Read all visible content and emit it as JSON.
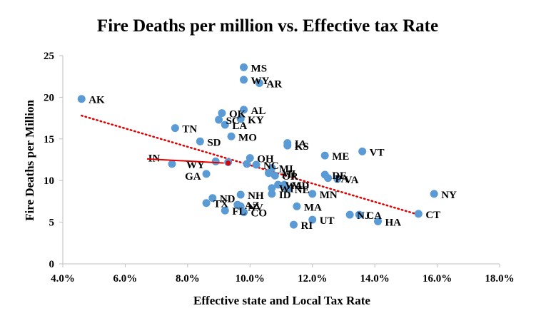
{
  "colors": {
    "point": "#5b9bd5",
    "trendline": "#e00000",
    "arrow": "#e00000",
    "axis": "#bfbfbf"
  },
  "chart_data": {
    "type": "scatter",
    "title": "Fire Deaths per million vs. Effective tax Rate",
    "xlabel": "Effective state and Local Tax Rate",
    "ylabel": "Fire Deaths per Million",
    "xlim": [
      0.04,
      0.18
    ],
    "ylim": [
      0,
      25
    ],
    "x_ticks": [
      0.04,
      0.06,
      0.08,
      0.1,
      0.12,
      0.14,
      0.16,
      0.18
    ],
    "x_tick_labels": [
      "4.0%",
      "6.0%",
      "8.0%",
      "10.0%",
      "12.0%",
      "14.0%",
      "16.0%",
      "18.0%"
    ],
    "y_ticks": [
      0,
      5,
      10,
      15,
      20,
      25
    ],
    "y_tick_labels": [
      "0",
      "5",
      "10",
      "15",
      "20",
      "25"
    ],
    "grid": false,
    "legend": "none",
    "trendline": {
      "type": "linear",
      "style": "dotted",
      "x": [
        0.046,
        0.154
      ],
      "y": [
        17.8,
        5.9
      ]
    },
    "annotation_arrow": {
      "from": [
        0.067,
        12.6
      ],
      "to": [
        0.093,
        12.1
      ]
    },
    "points": [
      {
        "x": 0.046,
        "y": 19.8,
        "label": "AK"
      },
      {
        "x": 0.098,
        "y": 23.6,
        "label": "MS"
      },
      {
        "x": 0.098,
        "y": 22.1,
        "label": "WY"
      },
      {
        "x": 0.103,
        "y": 21.7,
        "label": "AR"
      },
      {
        "x": 0.098,
        "y": 18.5,
        "label": "AL"
      },
      {
        "x": 0.091,
        "y": 18.1,
        "label": "OK"
      },
      {
        "x": 0.097,
        "y": 17.4,
        "label": "KY"
      },
      {
        "x": 0.09,
        "y": 17.3,
        "label": "SC"
      },
      {
        "x": 0.092,
        "y": 16.7,
        "label": "LA"
      },
      {
        "x": 0.076,
        "y": 16.3,
        "label": "TN"
      },
      {
        "x": 0.094,
        "y": 15.3,
        "label": "MO"
      },
      {
        "x": 0.084,
        "y": 14.7,
        "label": "SD"
      },
      {
        "x": 0.112,
        "y": 14.5,
        "label": "IA"
      },
      {
        "x": 0.112,
        "y": 14.2,
        "label": "KS"
      },
      {
        "x": 0.136,
        "y": 13.5,
        "label": "VT"
      },
      {
        "x": 0.124,
        "y": 13.0,
        "label": "ME"
      },
      {
        "x": 0.1,
        "y": 12.7,
        "label": "OH"
      },
      {
        "x": 0.093,
        "y": 12.2,
        "label": "IN"
      },
      {
        "x": 0.089,
        "y": 12.3,
        "label": ""
      },
      {
        "x": 0.075,
        "y": 12.0,
        "label": "WY"
      },
      {
        "x": 0.099,
        "y": 12.0,
        "label": ""
      },
      {
        "x": 0.102,
        "y": 11.9,
        "label": "NC"
      },
      {
        "x": 0.107,
        "y": 11.5,
        "label": "MI"
      },
      {
        "x": 0.086,
        "y": 10.8,
        "label": "GA"
      },
      {
        "x": 0.106,
        "y": 10.9,
        "label": "MI"
      },
      {
        "x": 0.108,
        "y": 10.6,
        "label": "OR"
      },
      {
        "x": 0.124,
        "y": 10.7,
        "label": "DE"
      },
      {
        "x": 0.125,
        "y": 10.3,
        "label": "PA"
      },
      {
        "x": 0.128,
        "y": 10.2,
        "label": "VA"
      },
      {
        "x": 0.109,
        "y": 9.5,
        "label": "WA"
      },
      {
        "x": 0.111,
        "y": 9.5,
        "label": "MD"
      },
      {
        "x": 0.107,
        "y": 9.1,
        "label": "WI"
      },
      {
        "x": 0.112,
        "y": 9.0,
        "label": "NE"
      },
      {
        "x": 0.107,
        "y": 8.4,
        "label": "ID"
      },
      {
        "x": 0.12,
        "y": 8.4,
        "label": "MN"
      },
      {
        "x": 0.097,
        "y": 8.3,
        "label": "NH"
      },
      {
        "x": 0.088,
        "y": 7.9,
        "label": "ND"
      },
      {
        "x": 0.086,
        "y": 7.3,
        "label": "TX"
      },
      {
        "x": 0.096,
        "y": 7.1,
        "label": "AZ"
      },
      {
        "x": 0.097,
        "y": 6.9,
        "label": "NV"
      },
      {
        "x": 0.092,
        "y": 6.4,
        "label": "FL"
      },
      {
        "x": 0.098,
        "y": 6.2,
        "label": "CO"
      },
      {
        "x": 0.115,
        "y": 6.9,
        "label": "MA"
      },
      {
        "x": 0.132,
        "y": 5.9,
        "label": "NJ"
      },
      {
        "x": 0.135,
        "y": 5.9,
        "label": "CA"
      },
      {
        "x": 0.141,
        "y": 5.1,
        "label": "HA"
      },
      {
        "x": 0.154,
        "y": 6.0,
        "label": "CT"
      },
      {
        "x": 0.159,
        "y": 8.4,
        "label": "NY"
      },
      {
        "x": 0.12,
        "y": 5.3,
        "label": "UT"
      },
      {
        "x": 0.114,
        "y": 4.7,
        "label": "RI"
      }
    ]
  }
}
